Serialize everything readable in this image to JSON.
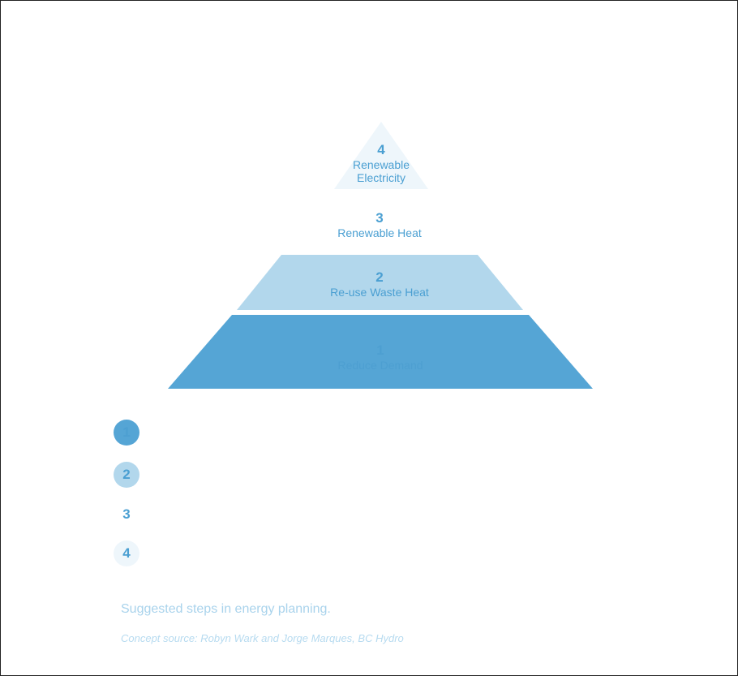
{
  "levels": [
    {
      "number": "1",
      "label": "Reduce Demand",
      "color": "#55a5d5",
      "text_color": "#4d9fd1"
    },
    {
      "number": "2",
      "label": "Re-use Waste Heat",
      "color": "#b2d7ec",
      "text_color": "#4a9fd2"
    },
    {
      "number": "3",
      "label": "Renewable Heat",
      "color": "#ffffff",
      "text_color": "#4a9fd2"
    },
    {
      "number": "4",
      "label_line1": "Renewable",
      "label_line2": "Electricity",
      "color": "#eef6fb",
      "text_color": "#4a9fd2"
    }
  ],
  "legend": [
    {
      "number": "1",
      "color": "#55a5d5"
    },
    {
      "number": "2",
      "color": "#b2d7ec"
    },
    {
      "number": "3",
      "color": "#ffffff"
    },
    {
      "number": "4",
      "color": "#eef6fb"
    }
  ],
  "caption": "Suggested steps in energy planning.",
  "source": "Concept source: Robyn Wark and Jorge Marques, BC Hydro"
}
